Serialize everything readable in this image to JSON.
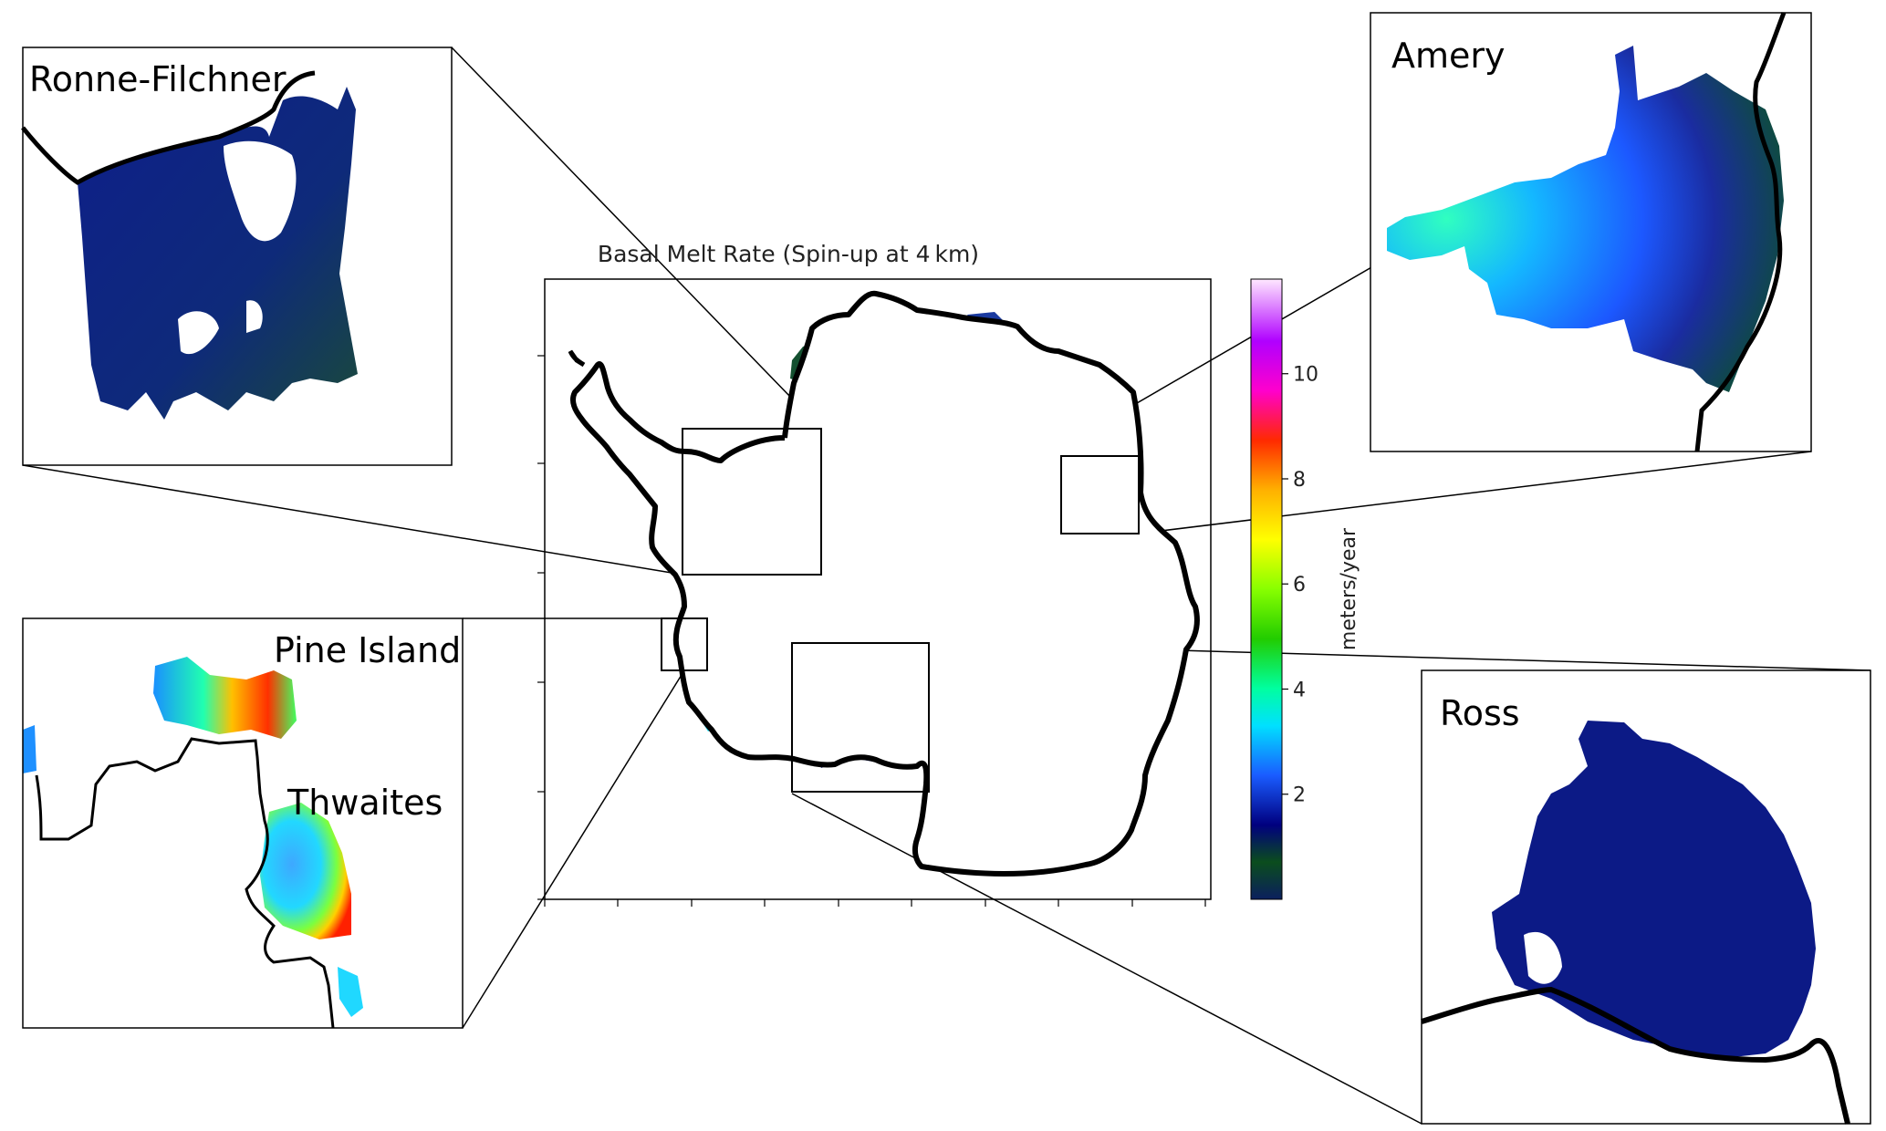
{
  "main_map": {
    "title": "Basal Melt Rate (Spin-up at 4 km)"
  },
  "colorbar": {
    "label": "meters/year",
    "ticks": [
      2,
      4,
      6,
      8,
      10
    ],
    "min": 0,
    "max": 11.8,
    "colormap": "gist_ncar",
    "stops": [
      {
        "value": 0.0,
        "color": "#0b1f5e"
      },
      {
        "value": 0.06,
        "color": "#0b4d1d"
      },
      {
        "value": 0.12,
        "color": "#00007f"
      },
      {
        "value": 0.2,
        "color": "#1a5cff"
      },
      {
        "value": 0.28,
        "color": "#00e0ff"
      },
      {
        "value": 0.34,
        "color": "#00ffa0"
      },
      {
        "value": 0.42,
        "color": "#22cc00"
      },
      {
        "value": 0.5,
        "color": "#88ff00"
      },
      {
        "value": 0.58,
        "color": "#ffff00"
      },
      {
        "value": 0.66,
        "color": "#ffb000"
      },
      {
        "value": 0.74,
        "color": "#ff2a00"
      },
      {
        "value": 0.82,
        "color": "#ff00cc"
      },
      {
        "value": 0.9,
        "color": "#b000ff"
      },
      {
        "value": 1.0,
        "color": "#ffe8ff"
      }
    ]
  },
  "insets": {
    "ronne": {
      "label": "Ronne-Filchner"
    },
    "amery": {
      "label": "Amery"
    },
    "pine": {
      "label": "Pine Island"
    },
    "thwaites": {
      "label": "Thwaites"
    },
    "ross": {
      "label": "Ross"
    }
  },
  "colors": {
    "coast": "#000000",
    "low_melt_blue": "#0c1f8c",
    "low_melt_green": "#174a30"
  }
}
